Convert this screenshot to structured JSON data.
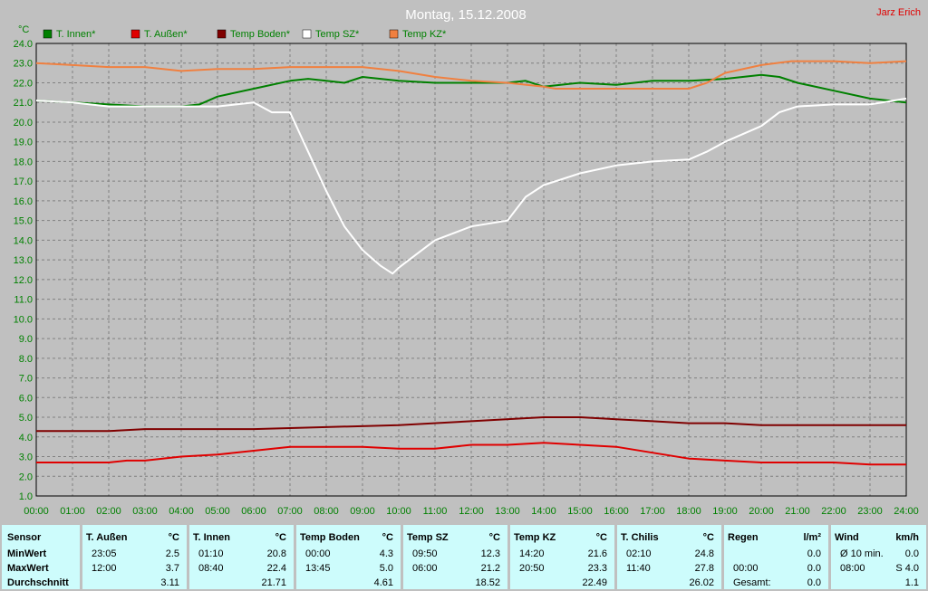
{
  "page": {
    "title": "Montag, 15.12.2008",
    "author": "Jarz Erich",
    "y_unit": "°C"
  },
  "colors": {
    "background": "#c0c0c0",
    "grid": "#808080",
    "axis_text": "#008000",
    "legend_text": "#008000",
    "stats_bg": "#cdfcfc"
  },
  "chart_data": {
    "type": "line",
    "title": "Montag, 15.12.2008",
    "xlabel": "",
    "ylabel": "°C",
    "xlim": [
      0,
      24
    ],
    "ylim": [
      1.0,
      24.0
    ],
    "grid": true,
    "legend_placement": "top-left",
    "x_ticks": [
      "00:00",
      "01:00",
      "02:00",
      "03:00",
      "04:00",
      "05:00",
      "06:00",
      "07:00",
      "08:00",
      "09:00",
      "10:00",
      "11:00",
      "12:00",
      "13:00",
      "14:00",
      "15:00",
      "16:00",
      "17:00",
      "18:00",
      "19:00",
      "20:00",
      "21:00",
      "22:00",
      "23:00",
      "24:00"
    ],
    "y_ticks": [
      "1.0",
      "2.0",
      "3.0",
      "4.0",
      "5.0",
      "6.0",
      "7.0",
      "8.0",
      "9.0",
      "10.0",
      "11.0",
      "12.0",
      "13.0",
      "14.0",
      "15.0",
      "16.0",
      "17.0",
      "18.0",
      "19.0",
      "20.0",
      "21.0",
      "22.0",
      "23.0",
      "24.0"
    ],
    "series": [
      {
        "name": "T. Innen*",
        "color": "#008000",
        "x": [
          0,
          1,
          2,
          3,
          4,
          4.5,
          5,
          6,
          7,
          7.5,
          8,
          8.5,
          9,
          9.5,
          10,
          11,
          12,
          13,
          13.5,
          14,
          15,
          16,
          17,
          18,
          19,
          20,
          20.5,
          21,
          22,
          23,
          24
        ],
        "y": [
          21.1,
          21.0,
          20.9,
          20.8,
          20.8,
          20.9,
          21.3,
          21.7,
          22.1,
          22.2,
          22.1,
          22.0,
          22.3,
          22.2,
          22.1,
          22.0,
          22.0,
          22.0,
          22.1,
          21.8,
          22.0,
          21.9,
          22.1,
          22.1,
          22.2,
          22.4,
          22.3,
          22.0,
          21.6,
          21.2,
          21.0
        ]
      },
      {
        "name": "T. Außen*",
        "color": "#e00000",
        "x": [
          0,
          1,
          2,
          2.5,
          3,
          4,
          5,
          6,
          7,
          8,
          9,
          10,
          11,
          12,
          13,
          14,
          15,
          16,
          17,
          18,
          19,
          20,
          21,
          22,
          23,
          23.5,
          24
        ],
        "y": [
          2.7,
          2.7,
          2.7,
          2.8,
          2.8,
          3.0,
          3.1,
          3.3,
          3.5,
          3.5,
          3.5,
          3.4,
          3.4,
          3.6,
          3.6,
          3.7,
          3.6,
          3.5,
          3.2,
          2.9,
          2.8,
          2.7,
          2.7,
          2.7,
          2.6,
          2.6,
          2.6
        ]
      },
      {
        "name": "Temp Boden*",
        "color": "#800000",
        "x": [
          0,
          2,
          3,
          4,
          6,
          8,
          10,
          12,
          14,
          15,
          16,
          17,
          18,
          19,
          20,
          21,
          22,
          23,
          24
        ],
        "y": [
          4.3,
          4.3,
          4.4,
          4.4,
          4.4,
          4.5,
          4.6,
          4.8,
          5.0,
          5.0,
          4.9,
          4.8,
          4.7,
          4.7,
          4.6,
          4.6,
          4.6,
          4.6,
          4.6
        ]
      },
      {
        "name": "Temp SZ*",
        "color": "#ffffff",
        "x": [
          0,
          1,
          2,
          3,
          4,
          5,
          6,
          6.5,
          7,
          7.5,
          8,
          8.5,
          9,
          9.5,
          9.83,
          10,
          10.5,
          11,
          12,
          13,
          13.5,
          14,
          15,
          16,
          17,
          18,
          18.5,
          19,
          20,
          20.5,
          21,
          22,
          23,
          24
        ],
        "y": [
          21.1,
          21.0,
          20.8,
          20.8,
          20.8,
          20.8,
          21.0,
          20.5,
          20.5,
          18.5,
          16.5,
          14.7,
          13.5,
          12.7,
          12.3,
          12.6,
          13.3,
          14.0,
          14.7,
          15.0,
          16.2,
          16.8,
          17.4,
          17.8,
          18.0,
          18.1,
          18.5,
          19.0,
          19.8,
          20.5,
          20.8,
          20.9,
          20.9,
          21.2
        ]
      },
      {
        "name": "Temp KZ*",
        "color": "#f08040",
        "x": [
          0,
          1,
          2,
          3,
          4,
          5,
          6,
          7,
          8,
          9,
          10,
          11,
          12,
          13,
          14,
          14.33,
          15,
          16,
          17,
          18,
          18.5,
          19,
          20,
          20.83,
          21,
          22,
          23,
          24
        ],
        "y": [
          23.0,
          22.9,
          22.8,
          22.8,
          22.6,
          22.7,
          22.7,
          22.8,
          22.8,
          22.8,
          22.6,
          22.3,
          22.1,
          22.0,
          21.8,
          21.7,
          21.7,
          21.7,
          21.7,
          21.7,
          22.0,
          22.5,
          22.9,
          23.1,
          23.1,
          23.1,
          23.0,
          23.1
        ]
      }
    ]
  },
  "stats": {
    "sensor": {
      "header": "Sensor",
      "unit": "",
      "rows": [
        "MinWert",
        "MaxWert",
        "Durchschnitt"
      ]
    },
    "columns": [
      {
        "name": "T. Außen",
        "unit": "°C",
        "min_time": "23:05",
        "min_val": "2.5",
        "max_time": "12:00",
        "max_val": "3.7",
        "avg": "3.11"
      },
      {
        "name": "T. Innen",
        "unit": "°C",
        "min_time": "01:10",
        "min_val": "20.8",
        "max_time": "08:40",
        "max_val": "22.4",
        "avg": "21.71"
      },
      {
        "name": "Temp Boden",
        "unit": "°C",
        "min_time": "00:00",
        "min_val": "4.3",
        "max_time": "13:45",
        "max_val": "5.0",
        "avg": "4.61"
      },
      {
        "name": "Temp SZ",
        "unit": "°C",
        "min_time": "09:50",
        "min_val": "12.3",
        "max_time": "06:00",
        "max_val": "21.2",
        "avg": "18.52"
      },
      {
        "name": "Temp KZ",
        "unit": "°C",
        "min_time": "14:20",
        "min_val": "21.6",
        "max_time": "20:50",
        "max_val": "23.3",
        "avg": "22.49"
      },
      {
        "name": "T. Chilis",
        "unit": "°C",
        "min_time": "02:10",
        "min_val": "24.8",
        "max_time": "11:40",
        "max_val": "27.8",
        "avg": "26.02"
      },
      {
        "name": "Regen",
        "unit": "l/m²",
        "min_time": "",
        "min_val": "0.0",
        "max_time": "00:00",
        "max_val": "0.0",
        "avg_label": "Gesamt:",
        "avg": "0.0"
      },
      {
        "name": "Wind",
        "unit": "km/h",
        "min_time": "Ø 10 min.",
        "min_val": "0.0",
        "max_time": "08:00",
        "max_val": "S 4.0",
        "avg": "1.1"
      }
    ]
  }
}
